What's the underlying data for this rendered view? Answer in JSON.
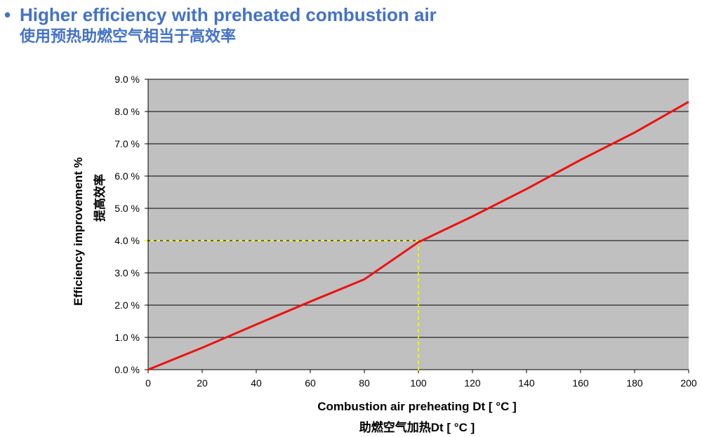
{
  "header": {
    "title_line1": "Higher efficiency with preheated combustion air",
    "title_line2": "使用预热助燃空气相当于高效率",
    "bullet": "•"
  },
  "colors": {
    "title": "#4472C4",
    "plot_bg": "#C0C0C0",
    "line": "#EE1111",
    "guide": "#FFFF00",
    "grid": "#000000"
  },
  "chart_data": {
    "type": "line",
    "title": "",
    "xlabel": "Combustion air preheating Dt [ °C ]",
    "xlabel_cn": "助燃空气加热Dt [ °C ]",
    "ylabel": "Efficiency improvement %",
    "ylabel_cn": "提高效率",
    "xlim": [
      0,
      200
    ],
    "ylim": [
      0,
      9
    ],
    "xticks": [
      0,
      20,
      40,
      60,
      80,
      100,
      120,
      140,
      160,
      180,
      200
    ],
    "xtick_labels": [
      "0",
      "20",
      "40",
      "60",
      "80",
      "100",
      "120",
      "140",
      "160",
      "180",
      "200"
    ],
    "yticks": [
      0,
      1,
      2,
      3,
      4,
      5,
      6,
      7,
      8,
      9
    ],
    "ytick_labels": [
      "0.0 %",
      "1.0 %",
      "2.0 %",
      "3.0 %",
      "4.0 %",
      "5.0 %",
      "6.0 %",
      "7.0 %",
      "8.0 %",
      "9.0 %"
    ],
    "grid": true,
    "series": [
      {
        "name": "Efficiency improvement",
        "x": [
          0,
          20,
          40,
          60,
          80,
          100,
          120,
          140,
          160,
          180,
          200
        ],
        "y": [
          0.0,
          0.68,
          1.4,
          2.11,
          2.8,
          3.95,
          4.75,
          5.6,
          6.5,
          7.35,
          8.3
        ]
      }
    ],
    "annotation": {
      "x": 100,
      "y": 4.0,
      "style": "dashed-guide"
    }
  }
}
